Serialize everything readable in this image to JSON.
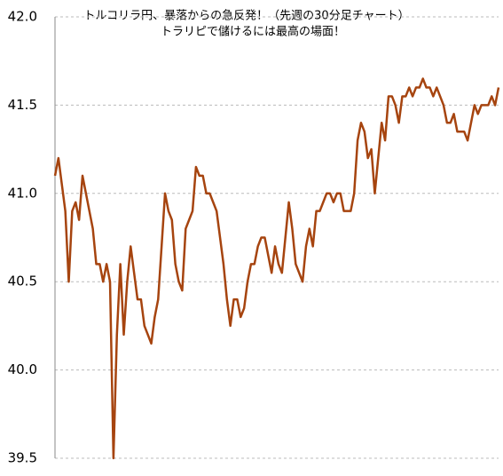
{
  "chart_data": {
    "type": "line",
    "title": "トルコリラ円、暴落からの急反発！（先週の30分足チャート）",
    "subtitle": "トラリピで儲けるには最高の場面！",
    "values": [
      41.1,
      41.2,
      41.05,
      40.9,
      40.5,
      40.9,
      40.95,
      40.85,
      41.1,
      41.0,
      40.9,
      40.8,
      40.6,
      40.6,
      40.5,
      40.6,
      40.5,
      39.5,
      40.2,
      40.6,
      40.2,
      40.5,
      40.7,
      40.55,
      40.4,
      40.4,
      40.25,
      40.2,
      40.15,
      40.3,
      40.4,
      40.7,
      41.0,
      40.9,
      40.85,
      40.6,
      40.5,
      40.45,
      40.8,
      40.85,
      40.9,
      41.15,
      41.1,
      41.1,
      41.0,
      41.0,
      40.95,
      40.9,
      40.75,
      40.6,
      40.4,
      40.25,
      40.4,
      40.4,
      40.3,
      40.35,
      40.5,
      40.6,
      40.6,
      40.7,
      40.75,
      40.75,
      40.65,
      40.55,
      40.7,
      40.6,
      40.55,
      40.75,
      40.95,
      40.8,
      40.6,
      40.55,
      40.5,
      40.7,
      40.8,
      40.7,
      40.9,
      40.9,
      40.95,
      41.0,
      41.0,
      40.95,
      41.0,
      41.0,
      40.9,
      40.9,
      40.9,
      41.0,
      41.3,
      41.4,
      41.35,
      41.2,
      41.25,
      41.0,
      41.2,
      41.4,
      41.3,
      41.55,
      41.55,
      41.5,
      41.4,
      41.55,
      41.55,
      41.6,
      41.55,
      41.6,
      41.6,
      41.65,
      41.6,
      41.6,
      41.55,
      41.6,
      41.55,
      41.5,
      41.4,
      41.4,
      41.45,
      41.35,
      41.35,
      41.35,
      41.3,
      41.4,
      41.5,
      41.45,
      41.5,
      41.5,
      41.5,
      41.55,
      41.5,
      41.6
    ],
    "color": "#a6440f",
    "ylim": [
      39.5,
      42.0
    ],
    "yticks": [
      {
        "value": 39.5,
        "label": "39.5"
      },
      {
        "value": 40,
        "label": "40.0"
      },
      {
        "value": 40.5,
        "label": "40.5"
      },
      {
        "value": 41,
        "label": "41.0"
      },
      {
        "value": 41.5,
        "label": "41.5"
      },
      {
        "value": 42,
        "label": "42.0"
      }
    ],
    "grid": true
  }
}
